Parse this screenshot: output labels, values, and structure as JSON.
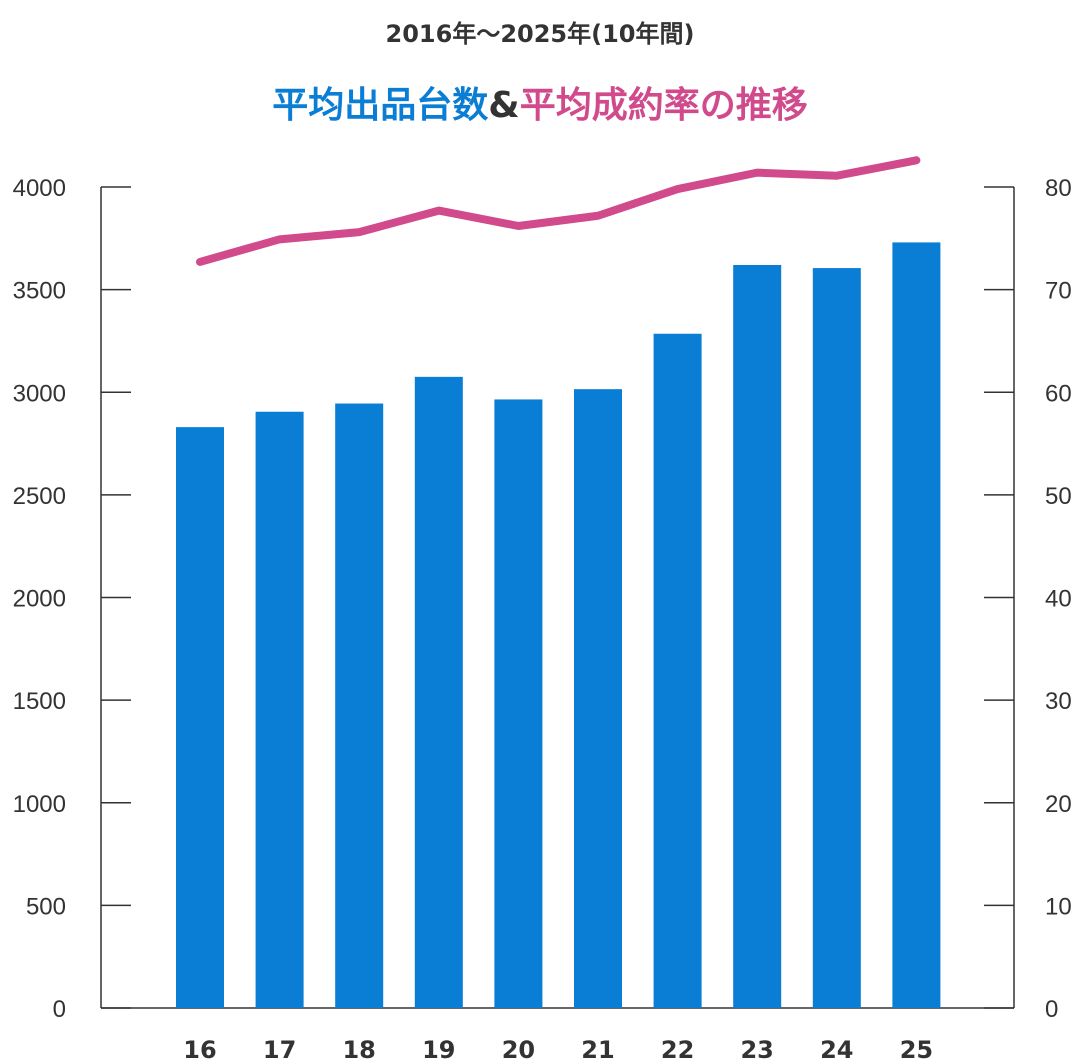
{
  "chart_data": {
    "type": "bar+line",
    "subtitle": "2016年〜2025年(10年間)",
    "title_parts": [
      {
        "text": "平均出品台数",
        "color": "#0a7dd4"
      },
      {
        "text": "&",
        "color": "#333333"
      },
      {
        "text": "平均成約率の推移",
        "color": "#d04a8c"
      }
    ],
    "categories": [
      "16",
      "17",
      "18",
      "19",
      "20",
      "21",
      "22",
      "23",
      "24",
      "25"
    ],
    "series": [
      {
        "type": "bar",
        "axis": "left",
        "color": "#0a7dd4",
        "values": [
          2830,
          2905,
          2945,
          3075,
          2965,
          3015,
          3285,
          3620,
          3605,
          3730
        ]
      },
      {
        "type": "line",
        "axis": "right",
        "color": "#d04a8c",
        "values": [
          72.7,
          74.9,
          75.6,
          77.7,
          76.2,
          77.2,
          79.8,
          81.4,
          81.1,
          82.6
        ]
      }
    ],
    "left_axis": {
      "range": [
        0,
        4000
      ],
      "ticks": [
        "0",
        "500",
        "1000",
        "1500",
        "2000",
        "2500",
        "3000",
        "3500",
        "4000"
      ]
    },
    "right_axis": {
      "range": [
        0,
        80
      ],
      "ticks": [
        "0",
        "10",
        "20",
        "30",
        "40",
        "50",
        "60",
        "70",
        "80"
      ]
    },
    "grid": false
  }
}
